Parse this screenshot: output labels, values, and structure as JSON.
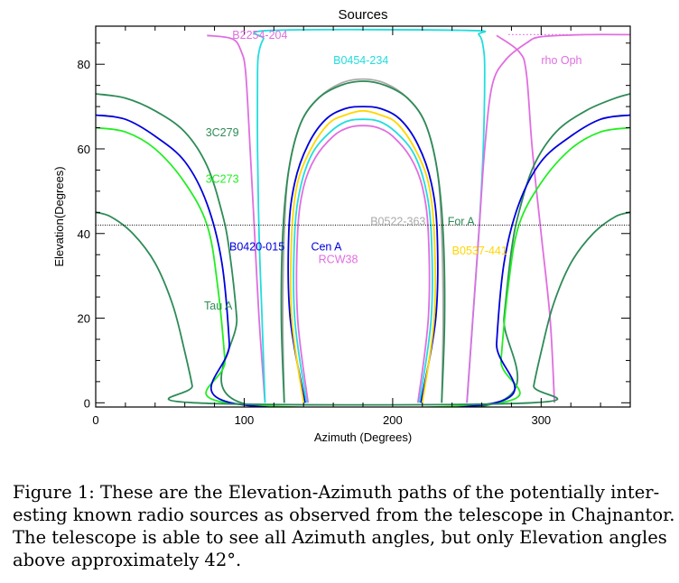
{
  "chart_data": {
    "type": "line",
    "title": "Sources",
    "xlabel": "Azimuth (Degrees)",
    "ylabel": "Elevation(Degrees)",
    "xlim": [
      0,
      360
    ],
    "ylim": [
      -1,
      89
    ],
    "xticks": [
      0,
      100,
      200,
      300
    ],
    "yticks": [
      0,
      20,
      40,
      60,
      80
    ],
    "threshold_elevation": 42,
    "grid": false,
    "legend": "inline-labels",
    "series": [
      {
        "name": "B2254-204",
        "color": "#e06ee0",
        "label_at": [
          92,
          86
        ],
        "dotted_above": 87,
        "points": [
          [
            114,
            0
          ],
          [
            110,
            20
          ],
          [
            107,
            40
          ],
          [
            104,
            60
          ],
          [
            101,
            78
          ],
          [
            98,
            83
          ],
          [
            92,
            86
          ],
          [
            75,
            86.8
          ],
          [
            0,
            87.2
          ],
          [
            270,
            86.8
          ],
          [
            285,
            83
          ],
          [
            290,
            78
          ],
          [
            294,
            60
          ],
          [
            300,
            40
          ],
          [
            306,
            20
          ],
          [
            309,
            0
          ]
        ]
      },
      {
        "name": "B0454-234",
        "color": "#22dddd",
        "label_at": [
          160,
          80
        ],
        "points": [
          [
            114,
            0
          ],
          [
            112,
            20
          ],
          [
            110,
            40
          ],
          [
            109,
            60
          ],
          [
            109,
            78
          ],
          [
            110,
            83
          ],
          [
            113,
            86
          ],
          [
            118,
            88
          ],
          [
            250,
            88
          ],
          [
            258,
            87
          ],
          [
            261,
            84
          ],
          [
            262,
            78
          ],
          [
            261,
            60
          ],
          [
            258,
            40
          ],
          [
            254,
            20
          ],
          [
            250,
            0
          ]
        ]
      },
      {
        "name": "rho Oph",
        "color": "#e06ee0",
        "label_at": [
          300,
          80
        ],
        "points": [
          [
            250,
            0
          ],
          [
            254,
            20
          ],
          [
            258,
            40
          ],
          [
            262,
            60
          ],
          [
            267,
            75
          ],
          [
            276,
            81
          ],
          [
            290,
            85
          ],
          [
            300,
            86.5
          ],
          [
            330,
            87
          ],
          [
            360,
            87
          ]
        ]
      },
      {
        "name": "3C279",
        "color": "#2e8b57",
        "label_at": [
          74,
          63
        ],
        "points": [
          [
            0,
            73
          ],
          [
            20,
            72
          ],
          [
            40,
            69
          ],
          [
            60,
            64
          ],
          [
            75,
            56
          ],
          [
            85,
            45
          ],
          [
            90,
            36
          ],
          [
            95,
            20
          ],
          [
            98,
            0
          ],
          [
            270,
            0
          ],
          [
            275,
            20
          ],
          [
            280,
            36
          ],
          [
            285,
            45
          ],
          [
            295,
            56
          ],
          [
            310,
            64
          ],
          [
            330,
            69
          ],
          [
            350,
            72
          ],
          [
            360,
            73
          ]
        ]
      },
      {
        "name": "3C273",
        "color": "#22ee22",
        "label_at": [
          74,
          52
        ],
        "points": [
          [
            0,
            65
          ],
          [
            20,
            64
          ],
          [
            40,
            60
          ],
          [
            60,
            52
          ],
          [
            75,
            42
          ],
          [
            82,
            28
          ],
          [
            87,
            10
          ],
          [
            88,
            0
          ],
          [
            272,
            0
          ],
          [
            273,
            10
          ],
          [
            278,
            28
          ],
          [
            285,
            42
          ],
          [
            300,
            52
          ],
          [
            320,
            60
          ],
          [
            340,
            64
          ],
          [
            360,
            65
          ]
        ]
      },
      {
        "name": "B0420-015",
        "color": "#0000dd",
        "label_at": [
          90,
          36
        ],
        "points": [
          [
            0,
            68
          ],
          [
            20,
            67
          ],
          [
            40,
            63
          ],
          [
            60,
            57
          ],
          [
            75,
            47
          ],
          [
            85,
            33
          ],
          [
            90,
            14
          ],
          [
            91,
            0
          ],
          [
            269,
            0
          ],
          [
            270,
            14
          ],
          [
            275,
            33
          ],
          [
            285,
            47
          ],
          [
            300,
            57
          ],
          [
            320,
            63
          ],
          [
            340,
            67
          ],
          [
            360,
            68
          ]
        ]
      },
      {
        "name": "Tau A",
        "color": "#2e8b57",
        "label_at": [
          73,
          22
        ],
        "points": [
          [
            0,
            45
          ],
          [
            10,
            44
          ],
          [
            25,
            40
          ],
          [
            40,
            33
          ],
          [
            52,
            23
          ],
          [
            60,
            12
          ],
          [
            65,
            4
          ],
          [
            66,
            0
          ],
          [
            294,
            0
          ],
          [
            295,
            4
          ],
          [
            300,
            12
          ],
          [
            308,
            23
          ],
          [
            320,
            33
          ],
          [
            335,
            40
          ],
          [
            350,
            44
          ],
          [
            360,
            45
          ]
        ]
      },
      {
        "name": "B0522-363",
        "color": "#aaaaaa",
        "label_at": [
          185,
          42
        ],
        "points": [
          [
            127,
            0
          ],
          [
            126,
            20
          ],
          [
            127,
            40
          ],
          [
            130,
            55
          ],
          [
            138,
            66
          ],
          [
            150,
            72
          ],
          [
            165,
            75.5
          ],
          [
            180,
            76.5
          ],
          [
            195,
            75.5
          ],
          [
            210,
            72
          ],
          [
            222,
            66
          ],
          [
            230,
            55
          ],
          [
            233,
            40
          ],
          [
            234,
            20
          ],
          [
            233,
            0
          ]
        ]
      },
      {
        "name": "For A",
        "color": "#2e8b57",
        "label_at": [
          237,
          42
        ],
        "points": [
          [
            127,
            0
          ],
          [
            125,
            20
          ],
          [
            126,
            40
          ],
          [
            130,
            55
          ],
          [
            138,
            66
          ],
          [
            150,
            72
          ],
          [
            165,
            75
          ],
          [
            180,
            76
          ],
          [
            195,
            75
          ],
          [
            210,
            72
          ],
          [
            222,
            66
          ],
          [
            230,
            55
          ],
          [
            234,
            40
          ],
          [
            235,
            20
          ],
          [
            233,
            0
          ]
        ]
      },
      {
        "name": "Cen A",
        "color": "#0000dd",
        "label_at": [
          145,
          36
        ],
        "points": [
          [
            141,
            0
          ],
          [
            131,
            20
          ],
          [
            130,
            40
          ],
          [
            134,
            52
          ],
          [
            143,
            61
          ],
          [
            155,
            67
          ],
          [
            168,
            69.5
          ],
          [
            180,
            70
          ],
          [
            192,
            69.5
          ],
          [
            205,
            67
          ],
          [
            217,
            61
          ],
          [
            226,
            52
          ],
          [
            230,
            40
          ],
          [
            229,
            20
          ],
          [
            219,
            0
          ]
        ]
      },
      {
        "name": "B0537-441",
        "color": "#ffd700",
        "label_at": [
          240,
          35
        ],
        "points": [
          [
            140,
            0
          ],
          [
            132,
            20
          ],
          [
            132,
            40
          ],
          [
            136,
            52
          ],
          [
            145,
            60
          ],
          [
            157,
            66
          ],
          [
            168,
            68
          ],
          [
            180,
            69
          ],
          [
            192,
            68
          ],
          [
            203,
            66
          ],
          [
            215,
            60
          ],
          [
            224,
            52
          ],
          [
            228,
            40
          ],
          [
            228,
            20
          ],
          [
            220,
            0
          ]
        ]
      },
      {
        "name": "RCW38",
        "color": "#e06ee0",
        "label_at": [
          150,
          33
        ],
        "points": [
          [
            143,
            0
          ],
          [
            136,
            20
          ],
          [
            136,
            40
          ],
          [
            140,
            51
          ],
          [
            148,
            58
          ],
          [
            160,
            63
          ],
          [
            170,
            65
          ],
          [
            180,
            65.5
          ],
          [
            190,
            65
          ],
          [
            200,
            63
          ],
          [
            212,
            58
          ],
          [
            220,
            51
          ],
          [
            224,
            40
          ],
          [
            224,
            20
          ],
          [
            217,
            0
          ]
        ]
      },
      {
        "name": "",
        "color": "#22dddd",
        "label_at": null,
        "points": [
          [
            142,
            0
          ],
          [
            134,
            20
          ],
          [
            134,
            40
          ],
          [
            138,
            51
          ],
          [
            146,
            59
          ],
          [
            158,
            64
          ],
          [
            169,
            66.5
          ],
          [
            180,
            67
          ],
          [
            191,
            66.5
          ],
          [
            202,
            64
          ],
          [
            214,
            59
          ],
          [
            222,
            51
          ],
          [
            226,
            40
          ],
          [
            226,
            20
          ],
          [
            218,
            0
          ]
        ]
      }
    ]
  },
  "caption": {
    "lines": [
      "Figure 1:  These are the Elevation-Azimuth paths of the potentially inter-",
      "esting known radio sources as observed from the telescope in Chajnantor.",
      "The telescope is able to see all Azimuth angles, but only Elevation angles",
      "above approximately 42°."
    ]
  }
}
